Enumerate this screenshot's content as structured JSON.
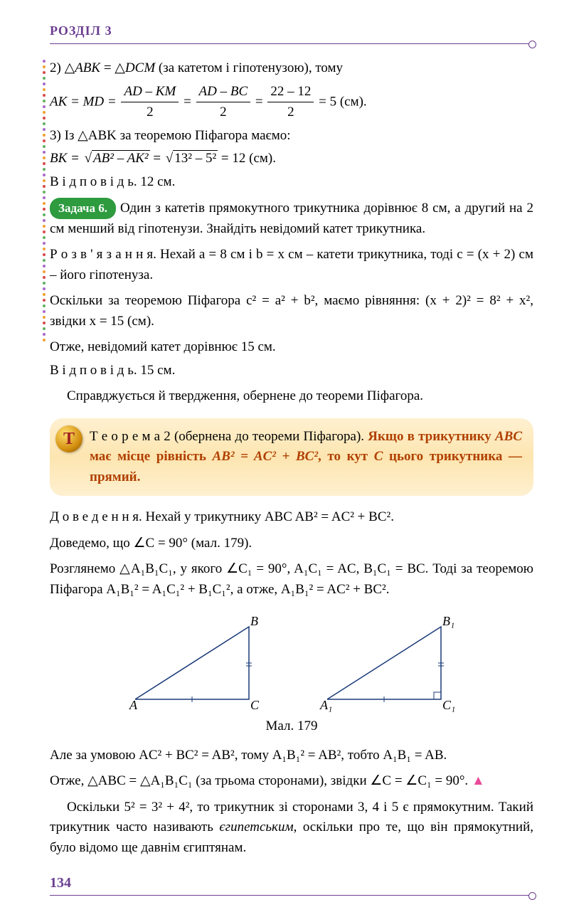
{
  "header": {
    "section": "РОЗДІЛ 3"
  },
  "dots": {
    "colors": [
      "#a868c8",
      "#f0a030",
      "#d84848",
      "#60b060",
      "#a868c8",
      "#f0a030",
      "#d84848",
      "#60b060"
    ]
  },
  "block1": {
    "l1_prefix": "2) △",
    "l1_a": "ABK",
    "l1_eq": " = △",
    "l1_b": "DCM",
    "l1_tail": " (за катетом і гіпотенузою), тому",
    "l2_lhs": "AK = MD = ",
    "l2_f1n": "AD – KM",
    "l2_f1d": "2",
    "l2_f2n": "AD – BC",
    "l2_f2d": "2",
    "l2_f3n": "22 – 12",
    "l2_f3d": "2",
    "l2_tail": " = 5 (см).",
    "l3": "3) Із △ABK за теоремою Піфагора маємо:",
    "l4_lhs": "BK = ",
    "l4_r1": "AB² – AK²",
    "l4_r2": "13² – 5²",
    "l4_tail": " = 12 (см).",
    "l5": "В і д п о в і д ь. 12 см."
  },
  "task6": {
    "badge": "Задача 6.",
    "body": "Один з катетів прямокутного трикутника дорівнює 8 см, а другий на 2 см менший від гіпотенузи. Знайдіть невідомий катет трикутника.",
    "sol_label": "Р о з в ' я з а н н я.",
    "sol1": " Нехай a = 8 см і b = x см – катети трикутника, тоді c = (x + 2) см – його гіпотенуза.",
    "sol2": "Оскільки за теоремою Піфагора c² = a² + b², маємо рівняння: (x + 2)² = 8² + x², звідки x = 15 (см).",
    "sol3": "Отже, невідомий катет дорівнює 15 см.",
    "ans": "В і д п о в і д ь. 15 см."
  },
  "bridge": "Справджується й твердження, обернене до теореми Піфагора.",
  "theorem": {
    "icon": "Т",
    "lead": "Т е о р е м а  2  (обернена до теореми Піфагора). ",
    "body1": "Якщо в трикутнику ",
    "abc": "ABC",
    "body2": " має місце рівність ",
    "eq": "AB² = AC² + BC²",
    "body3": ", то кут ",
    "c": "C",
    "body4": " цього трикутника — прямий."
  },
  "proof": {
    "label": "Д о в е д е н н я.",
    "p1": " Нехай у трикутнику ABC AB² = AC² + BC².",
    "p2": "Доведемо, що ∠C = 90° (мал. 179).",
    "p3": "Розглянемо △A₁B₁C₁, у якого ∠C₁ = 90°, A₁C₁ = AC, B₁C₁ = BC. Тоді за теоремою Піфагора A₁B₁² = A₁C₁² + B₁C₁², а отже, A₁B₁² = AC² + BC²."
  },
  "diagram": {
    "caption": "Мал. 179",
    "labels1": {
      "A": "A",
      "B": "B",
      "C": "C"
    },
    "labels2": {
      "A": "A₁",
      "B": "B₁",
      "C": "C₁"
    }
  },
  "proof2": {
    "p1": "Але за умовою AC² + BC² = AB², тому A₁B₁² = AB², тобто A₁B₁ = AB.",
    "p2": "Отже, △ABC = △A₁B₁C₁ (за трьома сторонами), звідки ∠C = ∠C₁ = 90°. ",
    "qed": "▲"
  },
  "final": {
    "p": "Оскільки 5² = 3² + 4², то трикутник зі сторонами 3, 4 і 5 є прямокутним. Такий трикутник часто називають ",
    "em": "єгипетським",
    "p2": ", оскільки про те, що він прямокутний, було відомо ще давнім єгиптянам."
  },
  "footer": {
    "page": "134"
  }
}
